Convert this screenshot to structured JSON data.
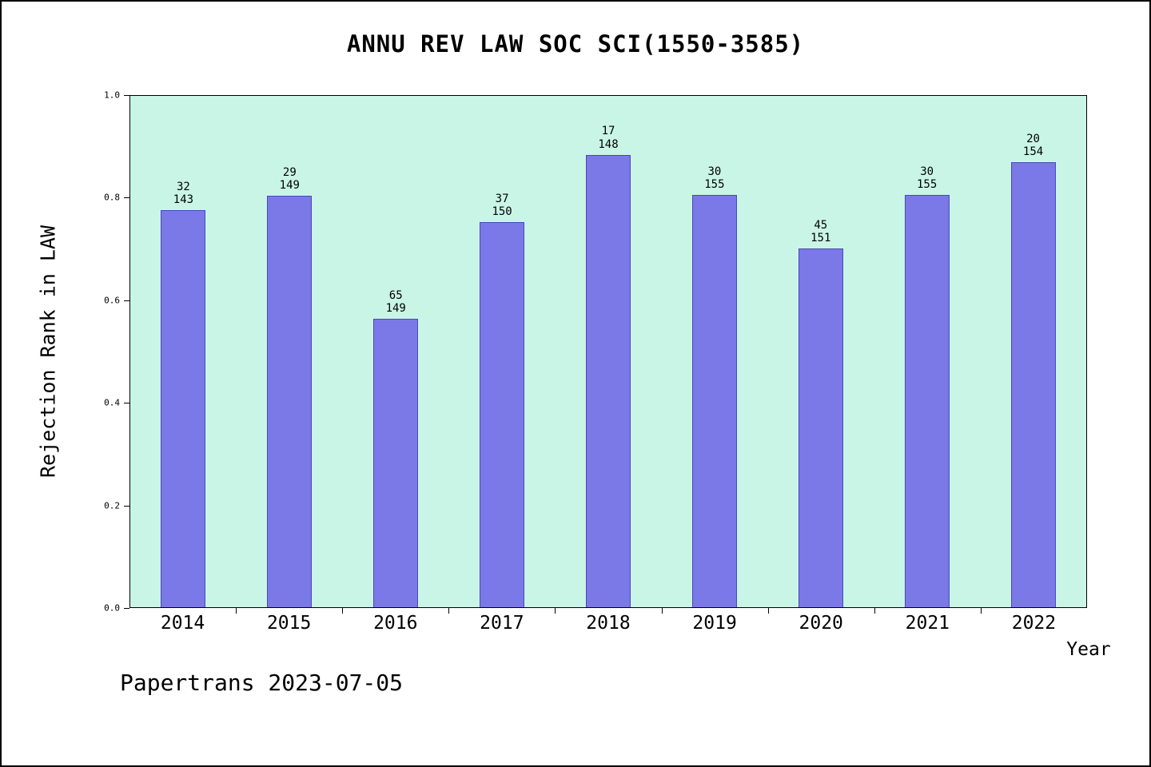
{
  "chart_data": {
    "type": "bar",
    "title": "ANNU REV LAW SOC SCI(1550-3585)",
    "xlabel": "Year",
    "ylabel": "Rejection Rank in LAW",
    "ylim": [
      0.0,
      1.0
    ],
    "ytick_labels": [
      "0.0",
      "0.2",
      "0.4",
      "0.6",
      "0.8",
      "1.0"
    ],
    "ytick_values": [
      0.0,
      0.2,
      0.4,
      0.6,
      0.8,
      1.0
    ],
    "grid": false,
    "legend_position": "none",
    "categories": [
      "2014",
      "2015",
      "2016",
      "2017",
      "2018",
      "2019",
      "2020",
      "2021",
      "2022"
    ],
    "series": [
      {
        "name": "rejection_rank_fraction",
        "values": [
          0.776,
          0.805,
          0.564,
          0.753,
          0.885,
          0.806,
          0.702,
          0.806,
          0.87
        ],
        "bar_labels": [
          {
            "rank": "32",
            "total": "143"
          },
          {
            "rank": "29",
            "total": "149"
          },
          {
            "rank": "65",
            "total": "149"
          },
          {
            "rank": "37",
            "total": "150"
          },
          {
            "rank": "17",
            "total": "148"
          },
          {
            "rank": "30",
            "total": "155"
          },
          {
            "rank": "45",
            "total": "151"
          },
          {
            "rank": "30",
            "total": "155"
          },
          {
            "rank": "20",
            "total": "154"
          }
        ]
      }
    ],
    "colors": {
      "bar_fill": "#7b78e8",
      "bar_edge": "#4b48b8",
      "plot_background": "#c9f5e7",
      "axis": "#000000"
    }
  },
  "footer": {
    "text": "Papertrans 2023-07-05"
  }
}
